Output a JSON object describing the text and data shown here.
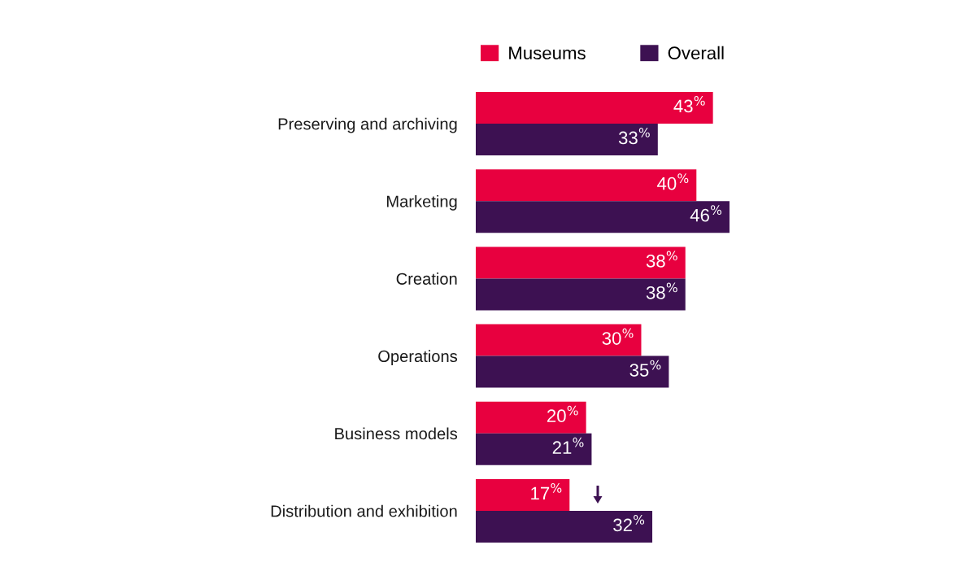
{
  "chart_data": {
    "type": "bar",
    "orientation": "horizontal",
    "categories": [
      "Preserving and archiving",
      "Marketing",
      "Creation",
      "Operations",
      "Business models",
      "Distribution and exhibition"
    ],
    "series": [
      {
        "name": "Museums",
        "color": "#e8003f",
        "values": [
          43,
          40,
          38,
          30,
          20,
          17
        ],
        "value_labels": [
          "43$^{%}$",
          "40$^{%}$",
          "38$^{%}$",
          "30$^{%}$",
          "20$^{%}$",
          "17$^{%}$"
        ]
      },
      {
        "name": "Overall",
        "color": "#3d1152",
        "values": [
          33,
          46,
          38,
          35,
          21,
          32
        ],
        "value_labels": [
          "33$^{%}$",
          "46$^{%}$",
          "38$^{%}$",
          "35$^{%}$",
          "21$^{%}$",
          "32$^{%}$"
        ]
      }
    ],
    "xlim": [
      0,
      46
    ],
    "tick_labels": "y",
    "legend": "top",
    "grid": false
  }
}
